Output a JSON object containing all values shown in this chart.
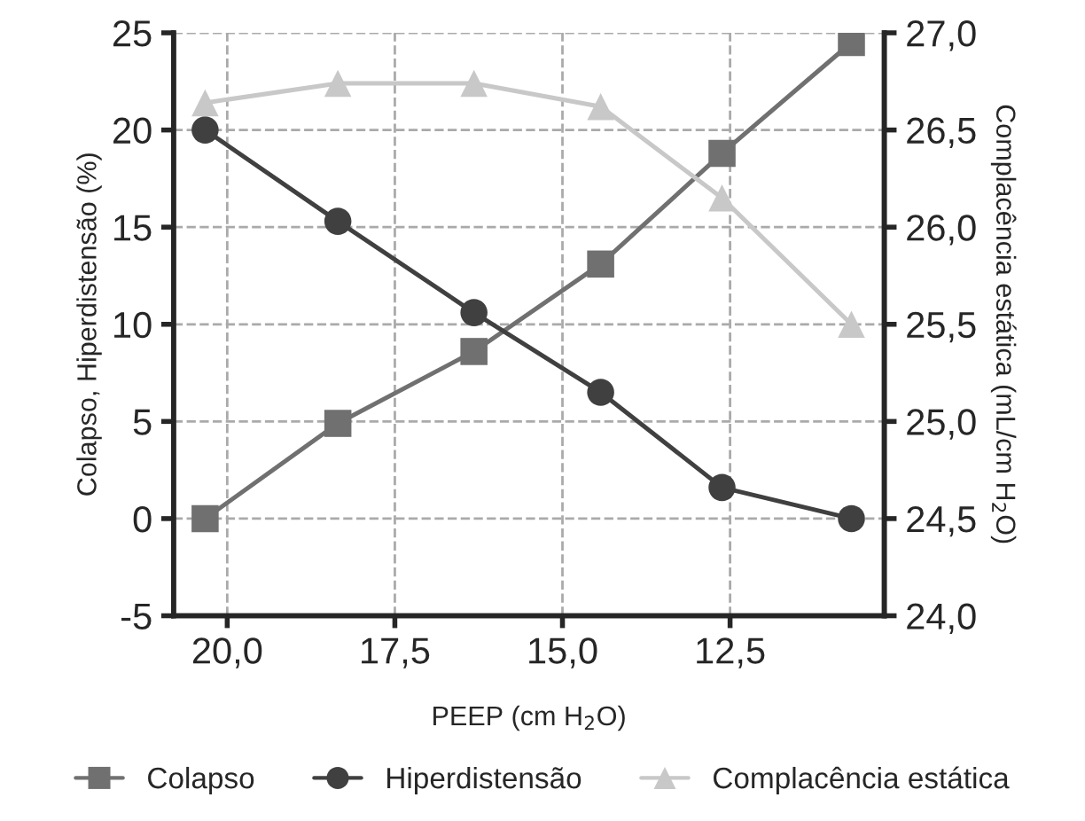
{
  "chart_data": {
    "type": "line",
    "xlabel": "PEEP (cm H$_{2}$O)",
    "ylabel": "Colapso, Hiperdistensão (%)",
    "y2label": "Complacência estática (mL/cm H$_{2}$O)",
    "x": [
      20.33,
      18.35,
      16.32,
      14.43,
      12.62,
      10.69
    ],
    "xlim": [
      20.8,
      10.2
    ],
    "xticks": [
      {
        "value": 20,
        "label": "20,0"
      },
      {
        "value": 17.5,
        "label": "17,5"
      },
      {
        "value": 15,
        "label": "15,0"
      },
      {
        "value": 12.5,
        "label": "12,5"
      }
    ],
    "ylim": [
      -5,
      25
    ],
    "yticks": [
      {
        "value": -5,
        "label": "-5"
      },
      0,
      5,
      10,
      15,
      20,
      25
    ],
    "y2lim": [
      24,
      27
    ],
    "y2ticks": [
      {
        "value": 24,
        "label": "24,0"
      },
      {
        "value": 24.5,
        "label": "24,5"
      },
      {
        "value": 25,
        "label": "25,0"
      },
      {
        "value": 25.5,
        "label": "25,5"
      },
      {
        "value": 26,
        "label": "26,0"
      },
      {
        "value": 26.5,
        "label": "26,5"
      },
      {
        "value": 27,
        "label": "27,0"
      }
    ],
    "series": [
      {
        "name": "Colapso",
        "color": "#707070",
        "marker": "square",
        "values": [
          0,
          4.9,
          8.6,
          13.1,
          18.8,
          24.5
        ]
      },
      {
        "name": "Hiperdistensão",
        "color": "#404040",
        "marker": "circle",
        "values": [
          20,
          15.3,
          10.6,
          6.5,
          1.6,
          0
        ]
      },
      {
        "name": "Complacência estática",
        "color": "#c8c8c8",
        "marker": "triangle",
        "axis": "y2",
        "values": [
          26.64,
          26.74,
          26.74,
          26.62,
          26.15,
          25.5
        ]
      }
    ],
    "grid": true,
    "legend": "bottom",
    "line_style": "solid"
  }
}
